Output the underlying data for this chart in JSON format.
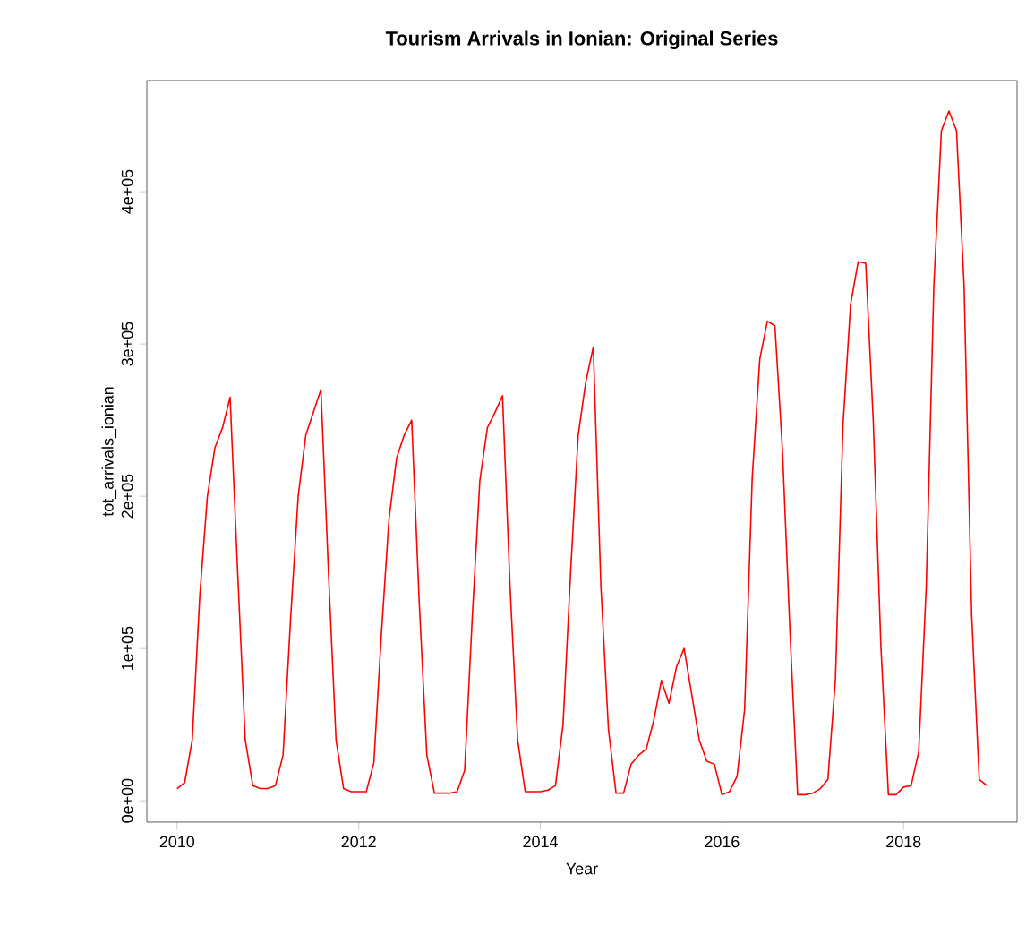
{
  "chart_data": {
    "type": "line",
    "title": "Tourism Arrivals in Ionian: Original Series",
    "xlabel": "Year",
    "ylabel": "tot_arrivals_ionian",
    "color": "#ff0000",
    "x": [
      "2010-01",
      "2010-02",
      "2010-03",
      "2010-04",
      "2010-05",
      "2010-06",
      "2010-07",
      "2010-08",
      "2010-09",
      "2010-10",
      "2010-11",
      "2010-12",
      "2011-01",
      "2011-02",
      "2011-03",
      "2011-04",
      "2011-05",
      "2011-06",
      "2011-07",
      "2011-08",
      "2011-09",
      "2011-10",
      "2011-11",
      "2011-12",
      "2012-01",
      "2012-02",
      "2012-03",
      "2012-04",
      "2012-05",
      "2012-06",
      "2012-07",
      "2012-08",
      "2012-09",
      "2012-10",
      "2012-11",
      "2012-12",
      "2013-01",
      "2013-02",
      "2013-03",
      "2013-04",
      "2013-05",
      "2013-06",
      "2013-07",
      "2013-08",
      "2013-09",
      "2013-10",
      "2013-11",
      "2013-12",
      "2014-01",
      "2014-02",
      "2014-03",
      "2014-04",
      "2014-05",
      "2014-06",
      "2014-07",
      "2014-08",
      "2014-09",
      "2014-10",
      "2014-11",
      "2014-12",
      "2015-01",
      "2015-02",
      "2015-03",
      "2015-04",
      "2015-05",
      "2015-06",
      "2015-07",
      "2015-08",
      "2015-09",
      "2015-10",
      "2015-11",
      "2015-12",
      "2016-01",
      "2016-02",
      "2016-03",
      "2016-04",
      "2016-05",
      "2016-06",
      "2016-07",
      "2016-08",
      "2016-09",
      "2016-10",
      "2016-11",
      "2016-12",
      "2017-01",
      "2017-02",
      "2017-03",
      "2017-04",
      "2017-05",
      "2017-06",
      "2017-07",
      "2017-08",
      "2017-09",
      "2017-10",
      "2017-11",
      "2017-12",
      "2018-01",
      "2018-02",
      "2018-03",
      "2018-04",
      "2018-05",
      "2018-06",
      "2018-07",
      "2018-08",
      "2018-09",
      "2018-10",
      "2018-11",
      "2018-12"
    ],
    "values": [
      8000,
      12000,
      40000,
      135000,
      200000,
      232000,
      245000,
      265000,
      150000,
      40000,
      10000,
      8000,
      8000,
      10000,
      30000,
      120000,
      200000,
      240000,
      255000,
      270000,
      150000,
      40000,
      8000,
      6000,
      6000,
      6000,
      25000,
      110000,
      185000,
      225000,
      240000,
      250000,
      130000,
      30000,
      5000,
      5000,
      5000,
      6000,
      20000,
      120000,
      210000,
      245000,
      255000,
      266000,
      140000,
      40000,
      6000,
      6000,
      6000,
      7000,
      10000,
      50000,
      150000,
      240000,
      275000,
      298000,
      141000,
      47000,
      5000,
      5000,
      24000,
      30000,
      34000,
      53000,
      79000,
      64000,
      88000,
      100000,
      70000,
      40000,
      26000,
      24000,
      4000,
      6000,
      16000,
      60000,
      212000,
      290000,
      315000,
      312000,
      230000,
      110000,
      4000,
      4000,
      5000,
      8000,
      14000,
      80000,
      247000,
      326000,
      354000,
      353000,
      249000,
      102000,
      4000,
      4000,
      9000,
      10000,
      32000,
      141000,
      338000,
      440000,
      453000,
      440000,
      338000,
      122000,
      14000,
      10000
    ],
    "xlim": [
      "2009-09",
      "2019-04"
    ],
    "xticks": [
      "2010",
      "2012",
      "2014",
      "2016",
      "2018"
    ],
    "ylim": [
      -14000,
      473000
    ],
    "yticks": [
      {
        "value": 0,
        "label": "0e+00"
      },
      {
        "value": 100000,
        "label": "1e+05"
      },
      {
        "value": 200000,
        "label": "2e+05"
      },
      {
        "value": 300000,
        "label": "3e+05"
      },
      {
        "value": 400000,
        "label": "4e+05"
      }
    ]
  }
}
